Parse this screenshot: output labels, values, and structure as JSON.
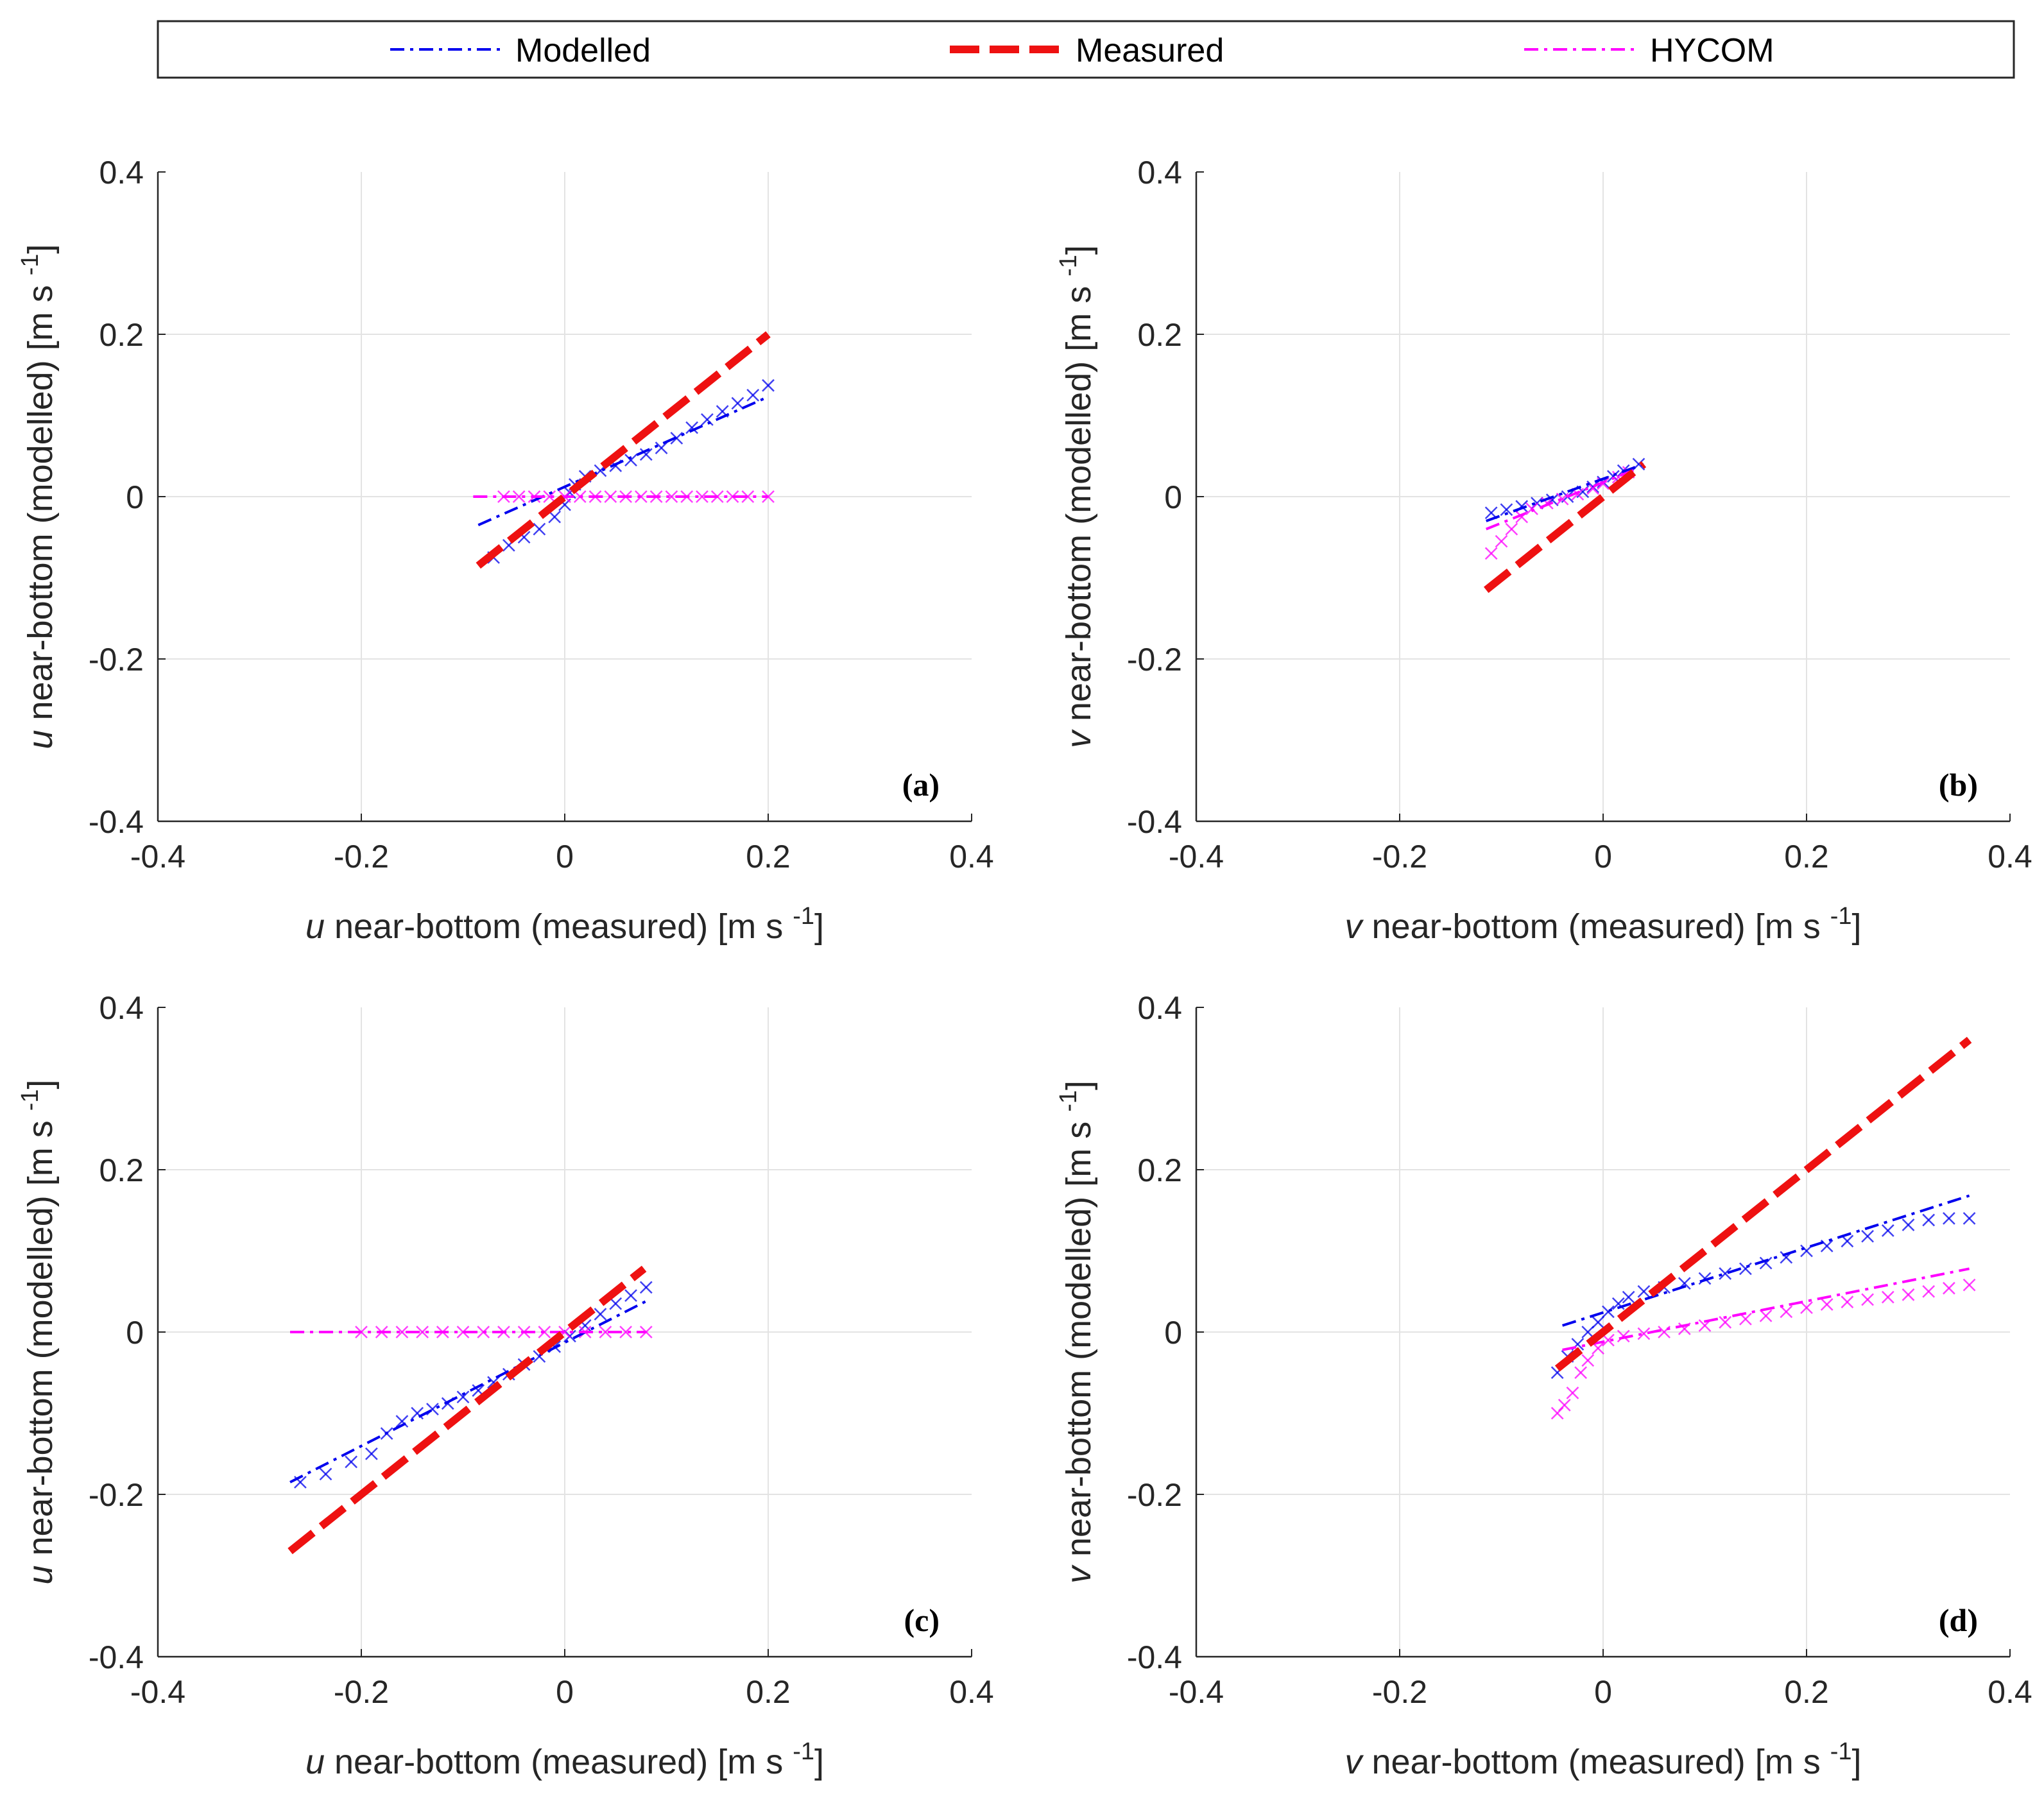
{
  "legend": [
    {
      "label": "Modelled",
      "color": "#0000ee",
      "style": "dashdot",
      "width": 4
    },
    {
      "label": "Measured",
      "color": "#ee1111",
      "style": "dash",
      "width": 12
    },
    {
      "label": "HYCOM",
      "color": "#ff00ff",
      "style": "dashdot",
      "width": 4
    }
  ],
  "ticks": [
    "-0.4",
    "-0.2",
    "0",
    "0.2",
    "0.4"
  ],
  "ylabel_unit": "[m s",
  "sup": "-1",
  "close_bracket": "]",
  "chart_data": [
    {
      "type": "scatter",
      "panel": "(a)",
      "var": "u",
      "xlabel": " near-bottom (measured) ",
      "ylabel": " near-bottom (modelled) ",
      "xlim": [
        -0.4,
        0.4
      ],
      "ylim": [
        -0.4,
        0.4
      ],
      "grid": true,
      "series": [
        {
          "name": "Modelled",
          "color": "#0000ee",
          "points": [
            [
              -0.07,
              -0.075
            ],
            [
              -0.055,
              -0.06
            ],
            [
              -0.04,
              -0.05
            ],
            [
              -0.025,
              -0.04
            ],
            [
              -0.01,
              -0.025
            ],
            [
              0,
              -0.01
            ],
            [
              0.005,
              0.005
            ],
            [
              0.01,
              0.015
            ],
            [
              0.02,
              0.025
            ],
            [
              0.035,
              0.032
            ],
            [
              0.05,
              0.038
            ],
            [
              0.065,
              0.045
            ],
            [
              0.08,
              0.052
            ],
            [
              0.095,
              0.06
            ],
            [
              0.11,
              0.072
            ],
            [
              0.125,
              0.085
            ],
            [
              0.14,
              0.095
            ],
            [
              0.155,
              0.105
            ],
            [
              0.17,
              0.115
            ],
            [
              0.185,
              0.125
            ],
            [
              0.2,
              0.137
            ]
          ],
          "fit": [
            [
              -0.085,
              -0.035
            ],
            [
              0.2,
              0.123
            ]
          ]
        },
        {
          "name": "HYCOM",
          "color": "#ff00ff",
          "points": [
            [
              -0.06,
              0
            ],
            [
              -0.045,
              0
            ],
            [
              -0.03,
              0
            ],
            [
              -0.015,
              0
            ],
            [
              0,
              0
            ],
            [
              0.015,
              0
            ],
            [
              0.03,
              0
            ],
            [
              0.045,
              0
            ],
            [
              0.06,
              0
            ],
            [
              0.075,
              0
            ],
            [
              0.09,
              0
            ],
            [
              0.105,
              0
            ],
            [
              0.12,
              0
            ],
            [
              0.135,
              0
            ],
            [
              0.15,
              0
            ],
            [
              0.165,
              0
            ],
            [
              0.18,
              0
            ],
            [
              0.2,
              0
            ]
          ],
          "fit": [
            [
              -0.09,
              0
            ],
            [
              0.2,
              0
            ]
          ]
        },
        {
          "name": "Measured",
          "color": "#ee1111",
          "points": [],
          "fit": [
            [
              -0.085,
              -0.085
            ],
            [
              0.2,
              0.2
            ]
          ]
        }
      ]
    },
    {
      "type": "scatter",
      "panel": "(b)",
      "var": "v",
      "xlabel": " near-bottom (measured) ",
      "ylabel": " near-bottom (modelled) ",
      "xlim": [
        -0.4,
        0.4
      ],
      "ylim": [
        -0.4,
        0.4
      ],
      "grid": true,
      "series": [
        {
          "name": "Modelled",
          "color": "#0000ee",
          "points": [
            [
              -0.11,
              -0.02
            ],
            [
              -0.095,
              -0.016
            ],
            [
              -0.08,
              -0.012
            ],
            [
              -0.065,
              -0.008
            ],
            [
              -0.05,
              -0.004
            ],
            [
              -0.035,
              0
            ],
            [
              -0.02,
              0.006
            ],
            [
              -0.01,
              0.012
            ],
            [
              0,
              0.018
            ],
            [
              0.01,
              0.025
            ],
            [
              0.02,
              0.032
            ],
            [
              0.035,
              0.04
            ]
          ],
          "fit": [
            [
              -0.115,
              -0.03
            ],
            [
              0.04,
              0.04
            ]
          ]
        },
        {
          "name": "HYCOM",
          "color": "#ff00ff",
          "points": [
            [
              -0.11,
              -0.07
            ],
            [
              -0.1,
              -0.055
            ],
            [
              -0.09,
              -0.04
            ],
            [
              -0.08,
              -0.025
            ],
            [
              -0.07,
              -0.015
            ],
            [
              -0.055,
              -0.008
            ],
            [
              -0.04,
              -0.003
            ],
            [
              -0.025,
              0.003
            ],
            [
              -0.01,
              0.01
            ],
            [
              0,
              0.016
            ],
            [
              0.015,
              0.024
            ],
            [
              0.025,
              0.03
            ]
          ],
          "fit": [
            [
              -0.115,
              -0.04
            ],
            [
              0.035,
              0.035
            ]
          ]
        },
        {
          "name": "Measured",
          "color": "#ee1111",
          "points": [],
          "fit": [
            [
              -0.115,
              -0.115
            ],
            [
              0.04,
              0.04
            ]
          ]
        }
      ]
    },
    {
      "type": "scatter",
      "panel": "(c)",
      "var": "u",
      "xlabel": " near-bottom (measured) ",
      "ylabel": " near-bottom (modelled) ",
      "xlim": [
        -0.4,
        0.4
      ],
      "ylim": [
        -0.4,
        0.4
      ],
      "grid": true,
      "series": [
        {
          "name": "Modelled",
          "color": "#0000ee",
          "points": [
            [
              -0.26,
              -0.185
            ],
            [
              -0.235,
              -0.175
            ],
            [
              -0.21,
              -0.16
            ],
            [
              -0.19,
              -0.15
            ],
            [
              -0.175,
              -0.125
            ],
            [
              -0.16,
              -0.11
            ],
            [
              -0.145,
              -0.1
            ],
            [
              -0.13,
              -0.095
            ],
            [
              -0.115,
              -0.088
            ],
            [
              -0.1,
              -0.08
            ],
            [
              -0.085,
              -0.072
            ],
            [
              -0.07,
              -0.062
            ],
            [
              -0.055,
              -0.052
            ],
            [
              -0.04,
              -0.04
            ],
            [
              -0.025,
              -0.03
            ],
            [
              -0.01,
              -0.018
            ],
            [
              0.005,
              -0.005
            ],
            [
              0.02,
              0.008
            ],
            [
              0.035,
              0.022
            ],
            [
              0.05,
              0.035
            ],
            [
              0.065,
              0.045
            ],
            [
              0.08,
              0.055
            ]
          ],
          "fit": [
            [
              -0.27,
              -0.185
            ],
            [
              0.08,
              0.038
            ]
          ]
        },
        {
          "name": "HYCOM",
          "color": "#ff00ff",
          "points": [
            [
              -0.2,
              0
            ],
            [
              -0.18,
              0
            ],
            [
              -0.16,
              0
            ],
            [
              -0.14,
              0
            ],
            [
              -0.12,
              0
            ],
            [
              -0.1,
              0
            ],
            [
              -0.08,
              0
            ],
            [
              -0.06,
              0
            ],
            [
              -0.04,
              0
            ],
            [
              -0.02,
              0
            ],
            [
              0,
              0
            ],
            [
              0.02,
              0
            ],
            [
              0.04,
              0
            ],
            [
              0.06,
              0
            ],
            [
              0.08,
              0
            ]
          ],
          "fit": [
            [
              -0.27,
              0
            ],
            [
              0.08,
              0
            ]
          ]
        },
        {
          "name": "Measured",
          "color": "#ee1111",
          "points": [],
          "fit": [
            [
              -0.27,
              -0.27
            ],
            [
              0.078,
              0.078
            ]
          ]
        }
      ]
    },
    {
      "type": "scatter",
      "panel": "(d)",
      "var": "v",
      "xlabel": " near-bottom (measured) ",
      "ylabel": " near-bottom (modelled) ",
      "xlim": [
        -0.4,
        0.4
      ],
      "ylim": [
        -0.4,
        0.4
      ],
      "grid": true,
      "series": [
        {
          "name": "Modelled",
          "color": "#0000ee",
          "points": [
            [
              -0.045,
              -0.05
            ],
            [
              -0.035,
              -0.03
            ],
            [
              -0.025,
              -0.015
            ],
            [
              -0.015,
              0
            ],
            [
              -0.005,
              0.012
            ],
            [
              0.005,
              0.025
            ],
            [
              0.015,
              0.035
            ],
            [
              0.025,
              0.043
            ],
            [
              0.04,
              0.05
            ],
            [
              0.06,
              0.055
            ],
            [
              0.08,
              0.06
            ],
            [
              0.1,
              0.066
            ],
            [
              0.12,
              0.072
            ],
            [
              0.14,
              0.078
            ],
            [
              0.16,
              0.085
            ],
            [
              0.18,
              0.092
            ],
            [
              0.2,
              0.1
            ],
            [
              0.22,
              0.106
            ],
            [
              0.24,
              0.112
            ],
            [
              0.26,
              0.118
            ],
            [
              0.28,
              0.125
            ],
            [
              0.3,
              0.132
            ],
            [
              0.32,
              0.138
            ],
            [
              0.34,
              0.14
            ],
            [
              0.36,
              0.14
            ]
          ],
          "fit": [
            [
              -0.04,
              0.008
            ],
            [
              0.36,
              0.168
            ]
          ]
        },
        {
          "name": "HYCOM",
          "color": "#ff00ff",
          "points": [
            [
              -0.045,
              -0.1
            ],
            [
              -0.038,
              -0.09
            ],
            [
              -0.03,
              -0.075
            ],
            [
              -0.022,
              -0.05
            ],
            [
              -0.015,
              -0.035
            ],
            [
              -0.005,
              -0.02
            ],
            [
              0.005,
              -0.01
            ],
            [
              0.02,
              -0.005
            ],
            [
              0.04,
              -0.002
            ],
            [
              0.06,
              0
            ],
            [
              0.08,
              0.004
            ],
            [
              0.1,
              0.008
            ],
            [
              0.12,
              0.012
            ],
            [
              0.14,
              0.016
            ],
            [
              0.16,
              0.02
            ],
            [
              0.18,
              0.025
            ],
            [
              0.2,
              0.03
            ],
            [
              0.22,
              0.034
            ],
            [
              0.24,
              0.037
            ],
            [
              0.26,
              0.04
            ],
            [
              0.28,
              0.043
            ],
            [
              0.3,
              0.046
            ],
            [
              0.32,
              0.05
            ],
            [
              0.34,
              0.054
            ],
            [
              0.36,
              0.058
            ]
          ],
          "fit": [
            [
              -0.04,
              -0.022
            ],
            [
              0.36,
              0.078
            ]
          ]
        },
        {
          "name": "Measured",
          "color": "#ee1111",
          "points": [],
          "fit": [
            [
              -0.045,
              -0.045
            ],
            [
              0.36,
              0.36
            ]
          ]
        }
      ]
    }
  ]
}
